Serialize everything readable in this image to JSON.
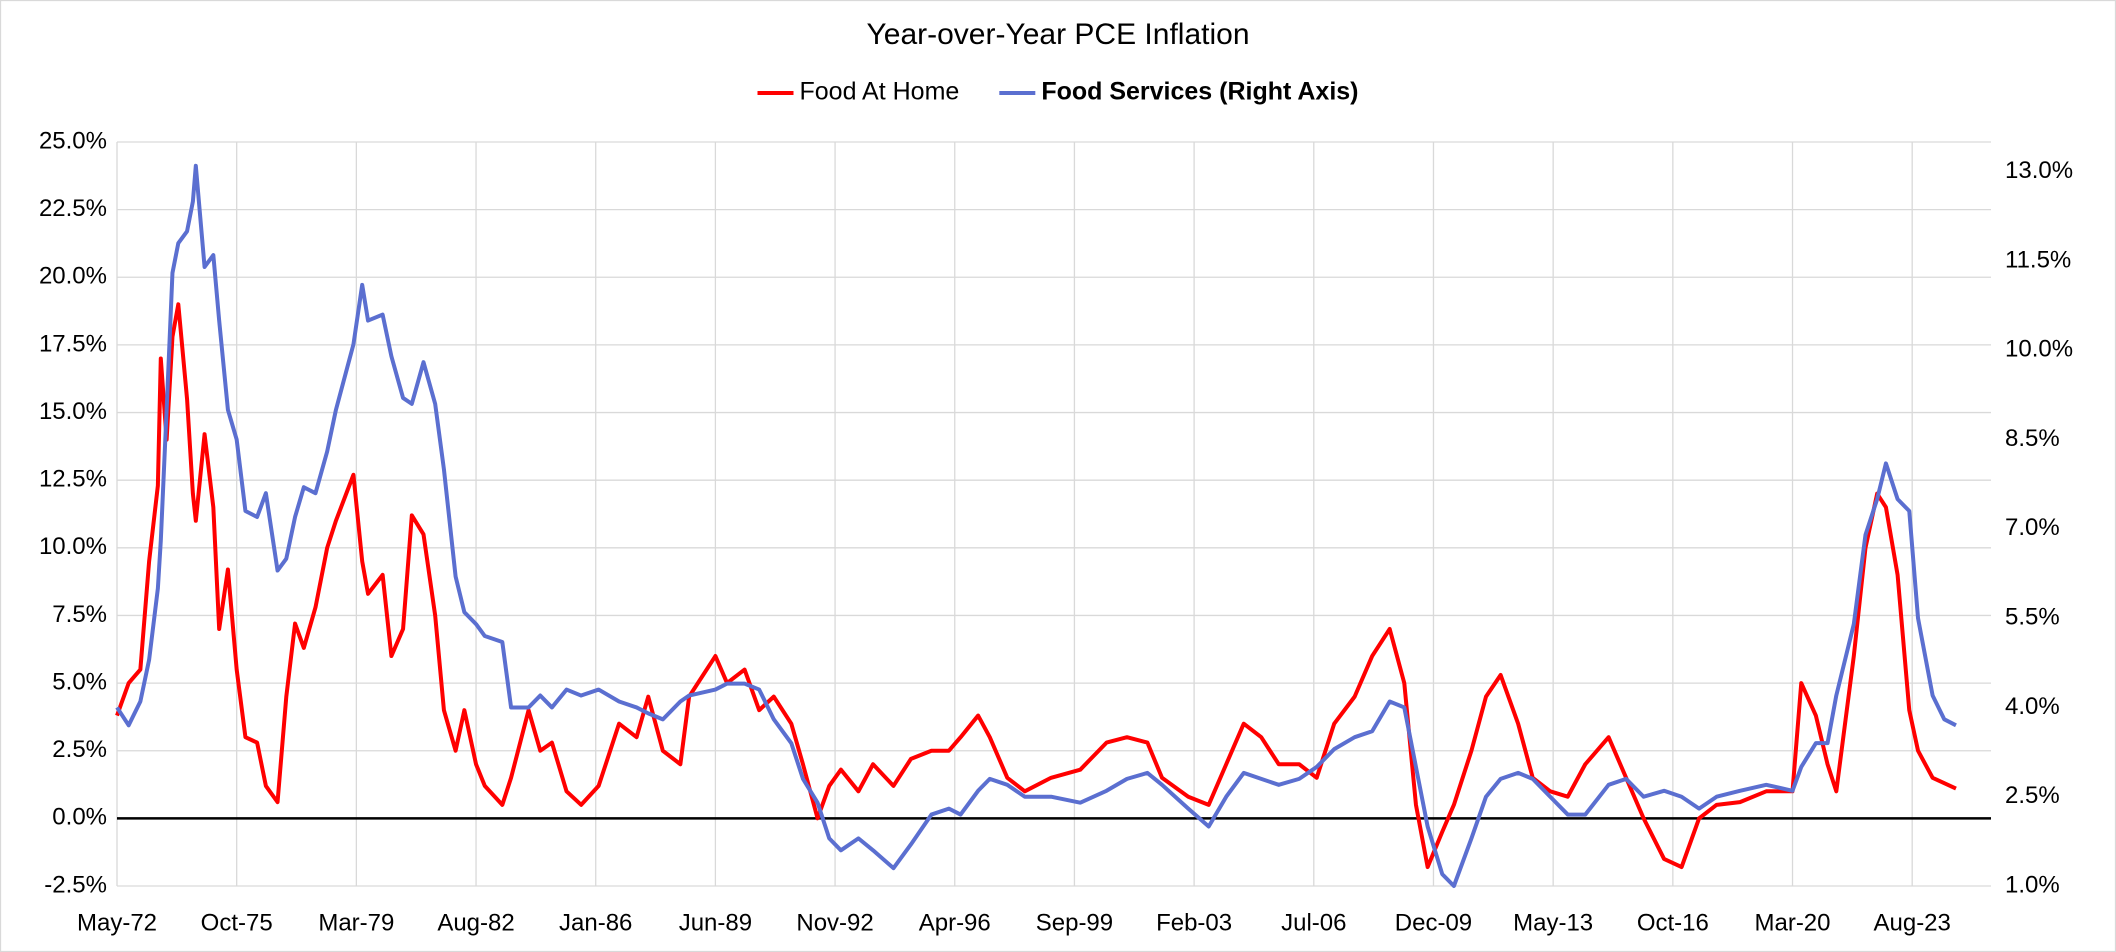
{
  "chart_data": {
    "type": "line",
    "title": "Year-over-Year PCE Inflation",
    "x": [
      "1972-05",
      "1972-09",
      "1973-01",
      "1973-04",
      "1973-07",
      "1973-08",
      "1973-10",
      "1973-12",
      "1974-02",
      "1974-05",
      "1974-07",
      "1974-08",
      "1974-11",
      "1975-02",
      "1975-04",
      "1975-07",
      "1975-10",
      "1976-01",
      "1976-05",
      "1976-08",
      "1976-12",
      "1977-03",
      "1977-06",
      "1977-09",
      "1978-01",
      "1978-05",
      "1978-08",
      "1979-02",
      "1979-05",
      "1979-07",
      "1979-12",
      "1980-03",
      "1980-07",
      "1980-10",
      "1981-02",
      "1981-06",
      "1981-09",
      "1982-01",
      "1982-04",
      "1982-08",
      "1982-11",
      "1983-05",
      "1983-08",
      "1984-02",
      "1984-06",
      "1984-10",
      "1985-03",
      "1985-08",
      "1986-02",
      "1986-09",
      "1987-03",
      "1987-07",
      "1987-12",
      "1988-06",
      "1988-09",
      "1989-06",
      "1989-10",
      "1990-04",
      "1990-09",
      "1991-02",
      "1991-08",
      "1991-12",
      "1992-05",
      "1992-09",
      "1993-01",
      "1993-07",
      "1993-12",
      "1994-07",
      "1995-01",
      "1995-08",
      "1996-02",
      "1996-06",
      "1996-12",
      "1997-04",
      "1997-10",
      "1998-04",
      "1999-01",
      "1999-11",
      "2000-08",
      "2001-03",
      "2001-10",
      "2002-03",
      "2002-12",
      "2003-07",
      "2004-01",
      "2004-07",
      "2005-01",
      "2005-07",
      "2006-02",
      "2006-08",
      "2007-02",
      "2007-09",
      "2008-03",
      "2008-09",
      "2009-02",
      "2009-06",
      "2009-10",
      "2010-03",
      "2010-07",
      "2011-01",
      "2011-06",
      "2011-11",
      "2012-05",
      "2012-10",
      "2013-04",
      "2013-10",
      "2014-04",
      "2014-12",
      "2015-06",
      "2015-12",
      "2016-07",
      "2017-01",
      "2017-07",
      "2018-01",
      "2018-09",
      "2019-06",
      "2020-03",
      "2020-06",
      "2020-11",
      "2021-03",
      "2021-06",
      "2021-12",
      "2022-04",
      "2022-08",
      "2022-11",
      "2023-03",
      "2023-07",
      "2023-10",
      "2024-03",
      "2024-07",
      "2024-11"
    ],
    "series": [
      {
        "name": "Food At Home",
        "color": "#ff0000",
        "axis": "y",
        "values": [
          3.8,
          5.0,
          5.5,
          9.5,
          12.3,
          17.0,
          14.0,
          17.8,
          19.0,
          15.5,
          12.0,
          11.0,
          14.2,
          11.5,
          7.0,
          9.2,
          5.5,
          3.0,
          2.8,
          1.2,
          0.6,
          4.5,
          7.2,
          6.3,
          7.8,
          10.0,
          11.0,
          12.7,
          9.5,
          8.3,
          9.0,
          6.0,
          7.0,
          11.2,
          10.5,
          7.5,
          4.0,
          2.5,
          4.0,
          2.0,
          1.2,
          0.5,
          1.5,
          4.0,
          2.5,
          2.8,
          1.0,
          0.5,
          1.2,
          3.5,
          3.0,
          4.5,
          2.5,
          2.0,
          4.5,
          6.0,
          5.0,
          5.5,
          4.0,
          4.5,
          3.5,
          2.0,
          0.0,
          1.2,
          1.8,
          1.0,
          2.0,
          1.2,
          2.2,
          2.5,
          2.5,
          3.0,
          3.8,
          3.0,
          1.5,
          1.0,
          1.5,
          1.8,
          2.8,
          3.0,
          2.8,
          1.5,
          0.8,
          0.5,
          2.0,
          3.5,
          3.0,
          2.0,
          2.0,
          1.5,
          3.5,
          4.5,
          6.0,
          7.0,
          5.0,
          0.5,
          -1.8,
          -0.5,
          0.5,
          2.5,
          4.5,
          5.3,
          3.5,
          1.5,
          1.0,
          0.8,
          2.0,
          3.0,
          1.5,
          0.0,
          -1.5,
          -1.8,
          0.0,
          0.5,
          0.6,
          1.0,
          1.0,
          5.0,
          3.8,
          2.0,
          1.0,
          6.0,
          10.0,
          12.0,
          11.5,
          9.0,
          4.0,
          2.5,
          1.5,
          1.3,
          1.1
        ]
      },
      {
        "name": "Food Services (Right Axis)",
        "color": "#5b6fd0",
        "axis": "y2",
        "values": [
          4.0,
          3.7,
          4.1,
          4.8,
          6.0,
          6.8,
          9.0,
          11.3,
          11.8,
          12.0,
          12.5,
          13.1,
          11.4,
          11.6,
          10.5,
          9.0,
          8.5,
          7.3,
          7.2,
          7.6,
          6.3,
          6.5,
          7.2,
          7.7,
          7.6,
          8.3,
          9.0,
          10.1,
          11.1,
          10.5,
          10.6,
          9.9,
          9.2,
          9.1,
          9.8,
          9.1,
          8.0,
          6.2,
          5.6,
          5.4,
          5.2,
          5.1,
          4.0,
          4.0,
          4.2,
          4.0,
          4.3,
          4.2,
          4.3,
          4.1,
          4.0,
          3.9,
          3.8,
          4.1,
          4.2,
          4.3,
          4.4,
          4.4,
          4.3,
          3.8,
          3.4,
          2.8,
          2.4,
          1.8,
          1.6,
          1.8,
          1.6,
          1.3,
          1.7,
          2.2,
          2.3,
          2.2,
          2.6,
          2.8,
          2.7,
          2.5,
          2.5,
          2.4,
          2.6,
          2.8,
          2.9,
          2.7,
          2.3,
          2.0,
          2.5,
          2.9,
          2.8,
          2.7,
          2.8,
          3.0,
          3.3,
          3.5,
          3.6,
          4.1,
          4.0,
          3.0,
          2.0,
          1.2,
          1.0,
          1.8,
          2.5,
          2.8,
          2.9,
          2.8,
          2.5,
          2.2,
          2.2,
          2.7,
          2.8,
          2.5,
          2.6,
          2.5,
          2.3,
          2.5,
          2.6,
          2.7,
          2.6,
          3.0,
          3.4,
          3.4,
          4.2,
          5.4,
          6.9,
          7.5,
          8.1,
          7.5,
          7.3,
          5.5,
          4.2,
          3.8,
          3.7
        ]
      }
    ],
    "xlim": [
      "1972-05",
      "2025-11"
    ],
    "xticks": [
      {
        "value": "1972-05",
        "label": "May-72"
      },
      {
        "value": "1975-10",
        "label": "Oct-75"
      },
      {
        "value": "1979-03",
        "label": "Mar-79"
      },
      {
        "value": "1982-08",
        "label": "Aug-82"
      },
      {
        "value": "1986-01",
        "label": "Jan-86"
      },
      {
        "value": "1989-06",
        "label": "Jun-89"
      },
      {
        "value": "1992-11",
        "label": "Nov-92"
      },
      {
        "value": "1996-04",
        "label": "Apr-96"
      },
      {
        "value": "1999-09",
        "label": "Sep-99"
      },
      {
        "value": "2003-02",
        "label": "Feb-03"
      },
      {
        "value": "2006-07",
        "label": "Jul-06"
      },
      {
        "value": "2009-12",
        "label": "Dec-09"
      },
      {
        "value": "2013-05",
        "label": "May-13"
      },
      {
        "value": "2016-10",
        "label": "Oct-16"
      },
      {
        "value": "2020-03",
        "label": "Mar-20"
      },
      {
        "value": "2023-08",
        "label": "Aug-23"
      }
    ],
    "ylim": [
      -2.5,
      25
    ],
    "yticks": [
      {
        "value": -2.5,
        "label": "-2.5%"
      },
      {
        "value": 0,
        "label": "0.0%"
      },
      {
        "value": 2.5,
        "label": "2.5%"
      },
      {
        "value": 5,
        "label": "5.0%"
      },
      {
        "value": 7.5,
        "label": "7.5%"
      },
      {
        "value": 10,
        "label": "10.0%"
      },
      {
        "value": 12.5,
        "label": "12.5%"
      },
      {
        "value": 15,
        "label": "15.0%"
      },
      {
        "value": 17.5,
        "label": "17.5%"
      },
      {
        "value": 20,
        "label": "20.0%"
      },
      {
        "value": 22.5,
        "label": "22.5%"
      },
      {
        "value": 25,
        "label": "25.0%"
      }
    ],
    "y2lim": [
      1,
      13.5
    ],
    "y2ticks": [
      {
        "value": 1,
        "label": "1.0%"
      },
      {
        "value": 2.5,
        "label": "2.5%"
      },
      {
        "value": 4,
        "label": "4.0%"
      },
      {
        "value": 5.5,
        "label": "5.5%"
      },
      {
        "value": 7,
        "label": "7.0%"
      },
      {
        "value": 8.5,
        "label": "8.5%"
      },
      {
        "value": 10,
        "label": "10.0%"
      },
      {
        "value": 11.5,
        "label": "11.5%"
      },
      {
        "value": 13,
        "label": "13.0%"
      }
    ],
    "grid": true,
    "legend": "top"
  }
}
